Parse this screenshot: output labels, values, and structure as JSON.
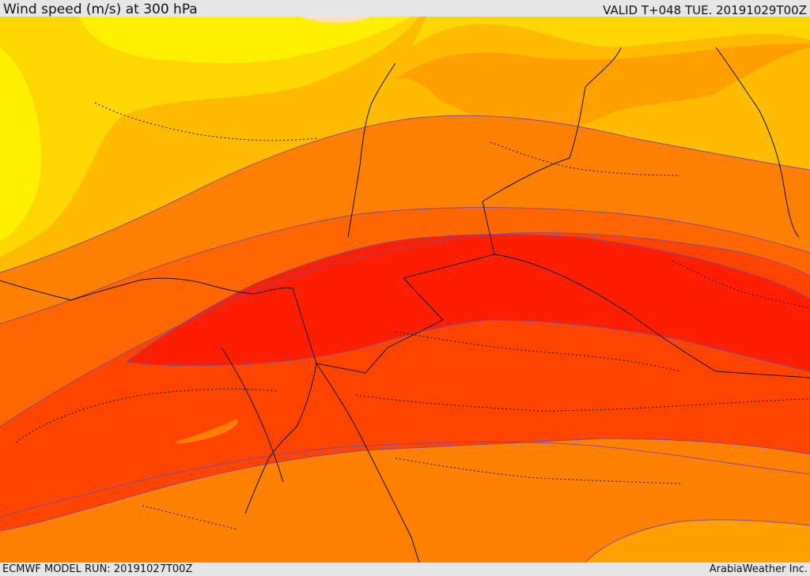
{
  "header": {
    "title": "Wind speed (m/s) at 300 hPa",
    "valid": "VALID T+048 TUE. 20191029T00Z"
  },
  "footer": {
    "model_run": "ECMWF MODEL RUN: 20191027T00Z",
    "credit": "ArabiaWeather Inc."
  },
  "map": {
    "field": "wind speed at 300 hPa",
    "units": "m/s",
    "colors": {
      "lightest": "#fce0b8",
      "band1": "#fff000",
      "band2": "#ffd700",
      "band3": "#ffbb00",
      "band4": "#ff9f00",
      "band5": "#ff8000",
      "band6": "#ff6600",
      "band7": "#ff4400",
      "band8": "#ff2a00",
      "band9": "#ff1f00",
      "contour_line": "#7a4aa0",
      "border_line": "#111111"
    }
  }
}
